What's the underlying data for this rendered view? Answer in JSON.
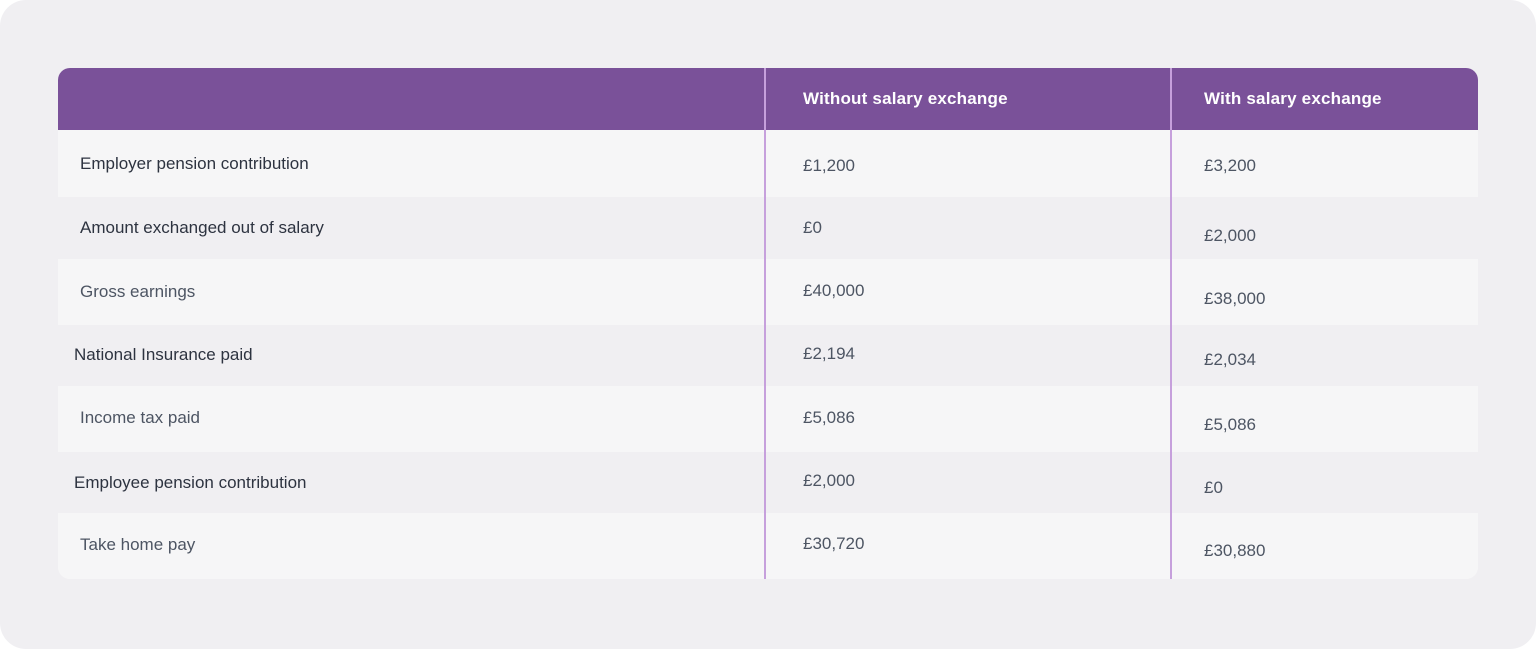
{
  "table": {
    "columns": [
      "",
      "Without salary exchange",
      "With salary exchange"
    ],
    "rows": [
      {
        "label": "Employer pension contribution",
        "without": "£1,200",
        "with": "£3,200"
      },
      {
        "label": "Amount exchanged out of salary",
        "without": "£0",
        "with": "£2,000"
      },
      {
        "label": "Gross earnings",
        "without": "£40,000",
        "with": "£38,000"
      },
      {
        "label": "National Insurance paid",
        "without": "£2,194",
        "with": "£2,034"
      },
      {
        "label": "Income tax paid",
        "without": "£5,086",
        "with": "£5,086"
      },
      {
        "label": "Employee pension contribution",
        "without": "£2,000",
        "with": "£0"
      },
      {
        "label": "Take home pay",
        "without": "£30,720",
        "with": "£30,880"
      }
    ]
  },
  "colors": {
    "header_background": "#7a5199",
    "divider": "#c6a0dc",
    "row_light": "#f6f6f7",
    "row_dark": "#f0eff2",
    "page_background": "#f0eff2"
  }
}
